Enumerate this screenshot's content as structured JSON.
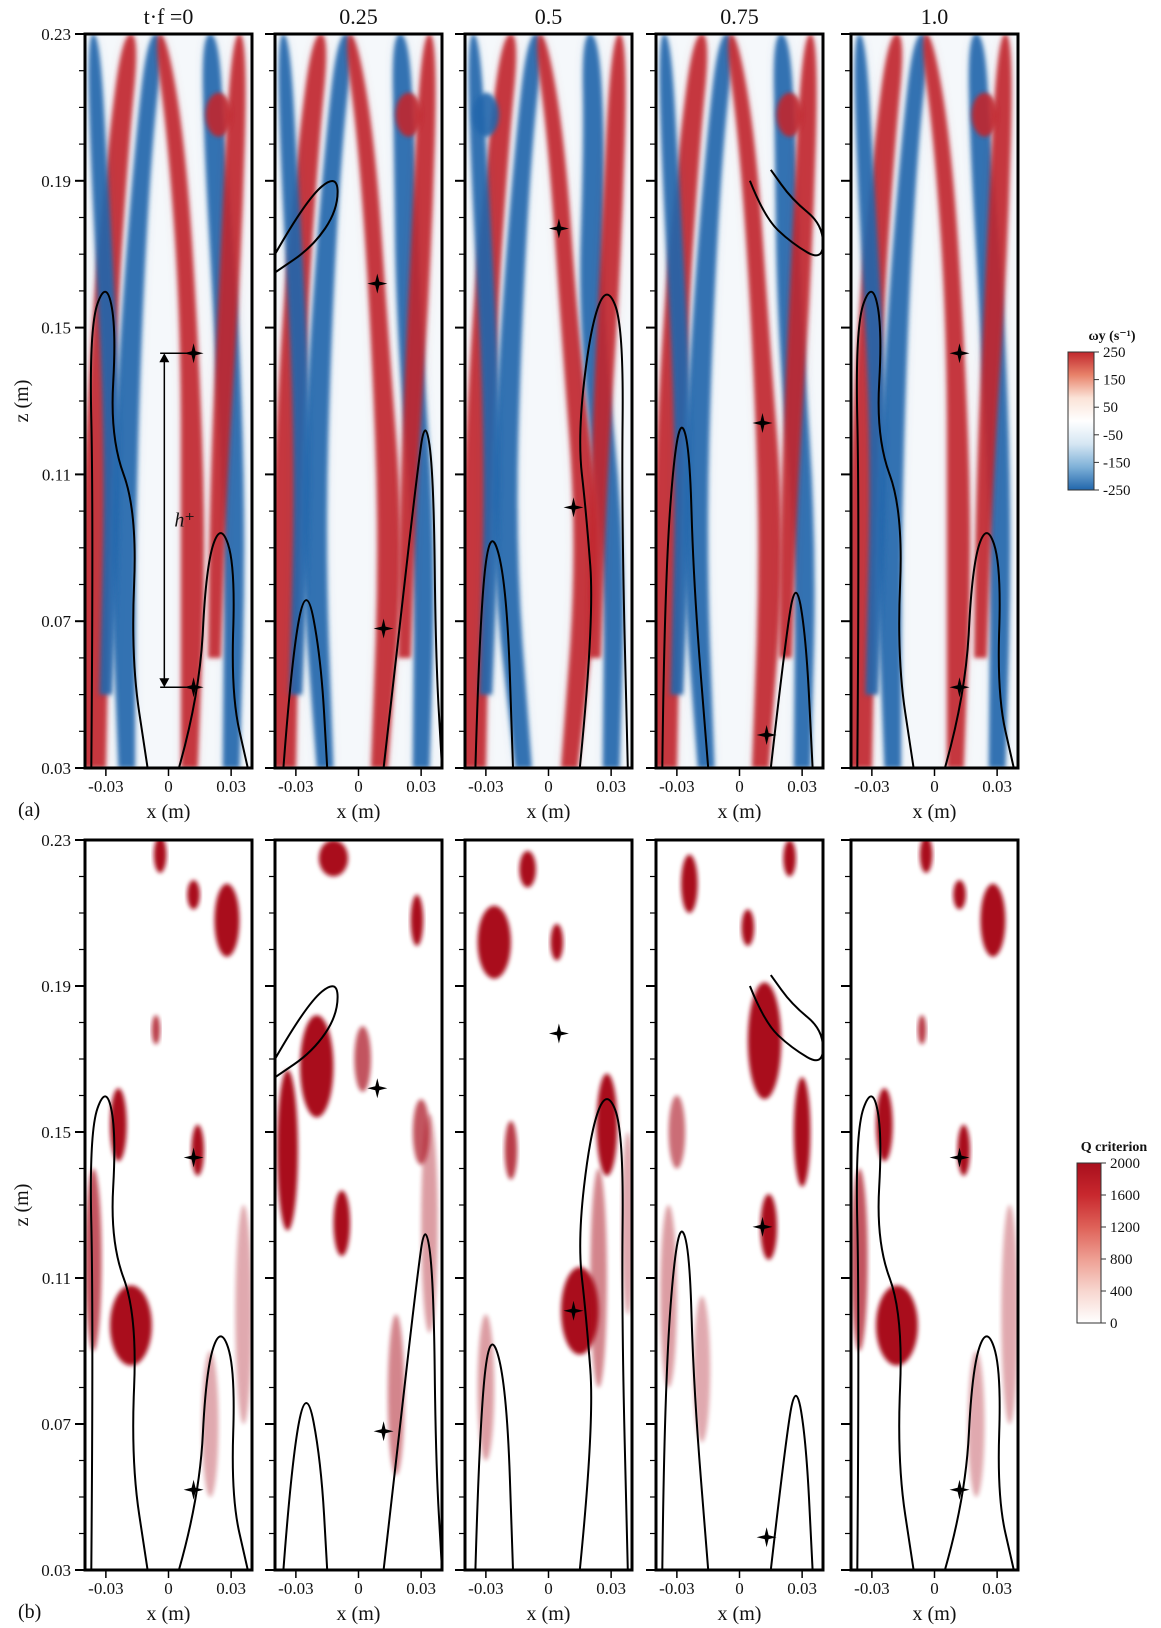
{
  "figure": {
    "time_prefix": "t·f =",
    "time_labels": [
      "0",
      "0.25",
      "0.5",
      "0.75",
      "1.0"
    ],
    "panel_a_label": "(a)",
    "panel_b_label": "(b)",
    "height_label": "h⁺",
    "x_title": "x (m)",
    "z_title": "z (m)",
    "x_ticks": [
      "-0.03",
      "0",
      "0.03"
    ],
    "z_ticks": [
      "0.23",
      "0.19",
      "0.15",
      "0.11",
      "0.07",
      "0.03"
    ]
  },
  "colorbar_a": {
    "title": "ωy (s⁻¹)",
    "levels": [
      "250",
      "150",
      "50",
      "-50",
      "-150",
      "-250"
    ],
    "colors": [
      "#c1272d",
      "#e8826a",
      "#fbe3d7",
      "#ffffff",
      "#d5e6f3",
      "#7fb1d8",
      "#2166ac"
    ]
  },
  "colorbar_b": {
    "title": "Q criterion",
    "levels": [
      "2000",
      "1600",
      "1200",
      "800",
      "400",
      "0"
    ],
    "colors": [
      "#ffffff",
      "#f7d6cf",
      "#ee9f93",
      "#de6158",
      "#c8282e",
      "#a90f1d"
    ]
  },
  "chart_data": [
    {
      "type": "heatmap",
      "title": "",
      "xlabel": "x (m)",
      "ylabel": "z (m)",
      "xlim": [
        -0.04,
        0.04
      ],
      "ylim": [
        0.03,
        0.23
      ],
      "x_ticks": [
        -0.03,
        0,
        0.03
      ],
      "z_ticks": [
        0.23,
        0.19,
        0.15,
        0.11,
        0.07,
        0.03
      ],
      "quantity": "ωy (s⁻¹)",
      "colorbar_range": [
        -250,
        250
      ],
      "time_instances": [
        0,
        0.25,
        0.5,
        0.75,
        1.0
      ],
      "markers": [
        {
          "t": 0,
          "points": [
            [
              0.012,
              0.143
            ],
            [
              0.012,
              0.052
            ]
          ]
        },
        {
          "t": 0.25,
          "points": [
            [
              0.009,
              0.162
            ],
            [
              0.012,
              0.068
            ]
          ]
        },
        {
          "t": 0.5,
          "points": [
            [
              0.005,
              0.177
            ],
            [
              0.012,
              0.101
            ]
          ]
        },
        {
          "t": 0.75,
          "points": [
            [
              0.011,
              0.124
            ],
            [
              0.013,
              0.039
            ]
          ]
        },
        {
          "t": 1.0,
          "points": [
            [
              0.012,
              0.143
            ],
            [
              0.012,
              0.052
            ]
          ]
        }
      ]
    },
    {
      "type": "heatmap",
      "title": "",
      "xlabel": "x (m)",
      "ylabel": "z (m)",
      "xlim": [
        -0.04,
        0.04
      ],
      "ylim": [
        0.03,
        0.23
      ],
      "x_ticks": [
        -0.03,
        0,
        0.03
      ],
      "z_ticks": [
        0.23,
        0.19,
        0.15,
        0.11,
        0.07,
        0.03
      ],
      "quantity": "Q criterion",
      "colorbar_range": [
        0,
        2000
      ],
      "time_instances": [
        0,
        0.25,
        0.5,
        0.75,
        1.0
      ],
      "markers": [
        {
          "t": 0,
          "points": [
            [
              0.012,
              0.143
            ],
            [
              0.012,
              0.052
            ]
          ]
        },
        {
          "t": 0.25,
          "points": [
            [
              0.009,
              0.162
            ],
            [
              0.012,
              0.068
            ]
          ]
        },
        {
          "t": 0.5,
          "points": [
            [
              0.005,
              0.177
            ],
            [
              0.012,
              0.101
            ]
          ]
        },
        {
          "t": 0.75,
          "points": [
            [
              0.011,
              0.124
            ],
            [
              0.013,
              0.039
            ]
          ]
        },
        {
          "t": 1.0,
          "points": [
            [
              0.012,
              0.143
            ],
            [
              0.012,
              0.052
            ]
          ]
        }
      ]
    }
  ]
}
